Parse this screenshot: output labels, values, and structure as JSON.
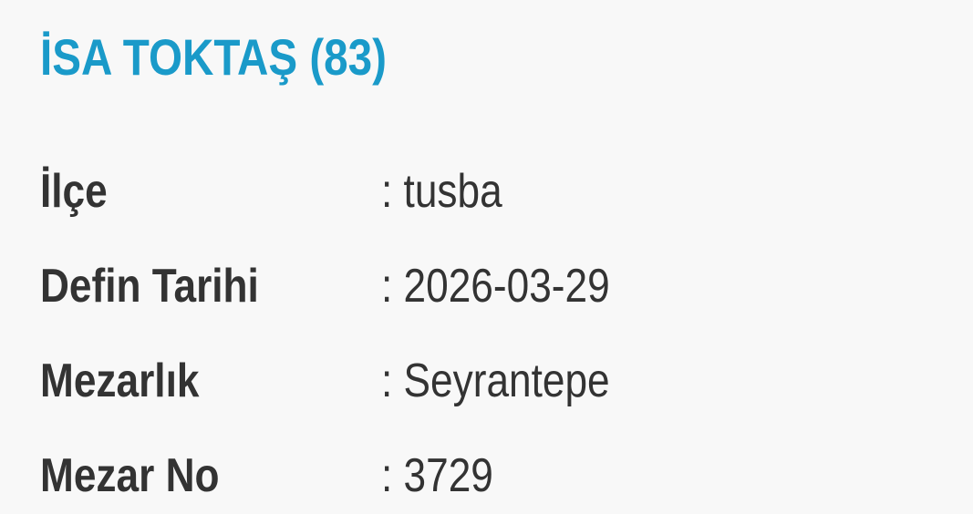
{
  "title": "İSA TOKTAŞ (83)",
  "fields": [
    {
      "label": "İlçe",
      "value": ": tusba"
    },
    {
      "label": "Defin Tarihi",
      "value": ": 2026-03-29"
    },
    {
      "label": "Mezarlık",
      "value": ": Seyrantepe"
    },
    {
      "label": "Mezar No",
      "value": ": 3729"
    }
  ],
  "colors": {
    "title": "#1a9ac9",
    "text": "#333333",
    "background": "#f8f8f8"
  }
}
